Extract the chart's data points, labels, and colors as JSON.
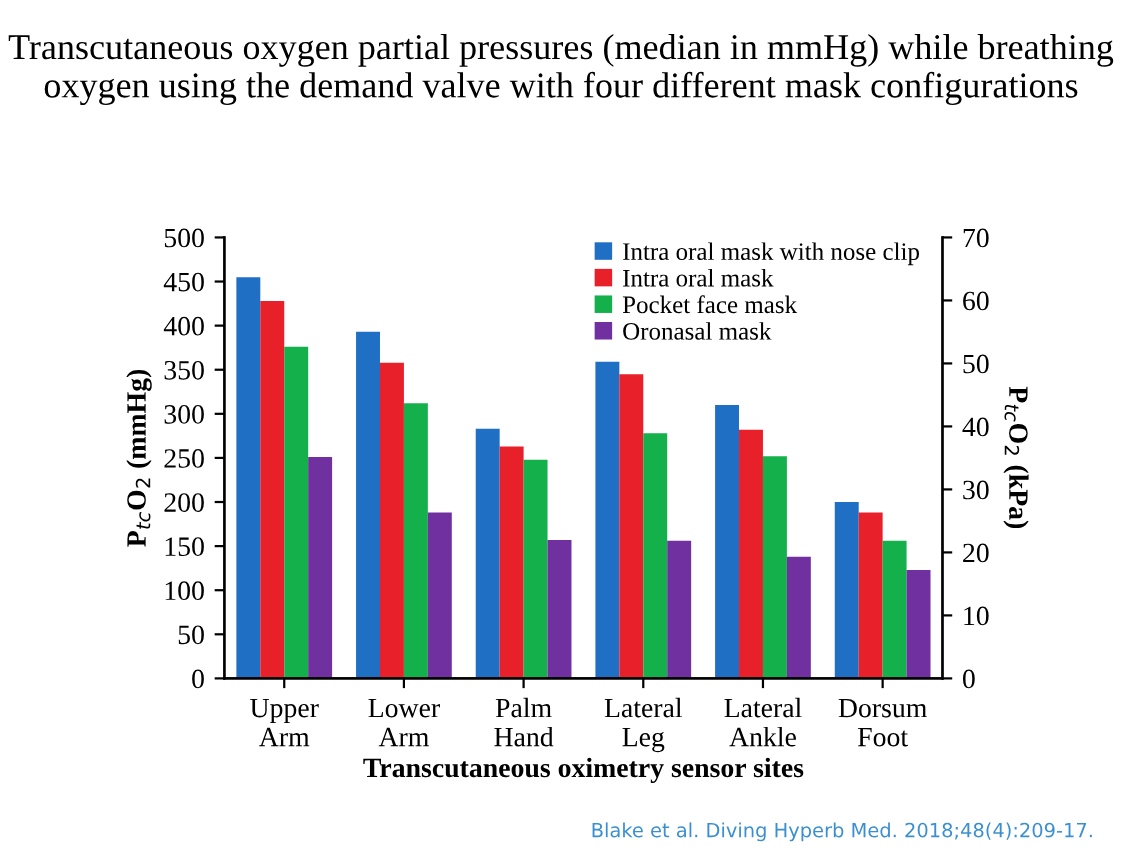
{
  "chart_data": {
    "type": "bar",
    "title": "Transcutaneous oxygen partial pressures (median in mmHg) while breathing oxygen using the demand valve with four different mask configurations",
    "categories": [
      "Upper\nArm",
      "Lower\nArm",
      "Palm\nHand",
      "Lateral\nLeg",
      "Lateral\nAnkle",
      "Dorsum\nFoot"
    ],
    "series": [
      {
        "name": "Intra oral mask with nose clip",
        "color": "#1f6fc5",
        "values": [
          455,
          393,
          283,
          359,
          310,
          200
        ]
      },
      {
        "name": "Intra oral mask",
        "color": "#e8202a",
        "values": [
          428,
          358,
          263,
          345,
          282,
          188
        ]
      },
      {
        "name": "Pocket face mask",
        "color": "#14b04c",
        "values": [
          376,
          312,
          248,
          278,
          252,
          156
        ]
      },
      {
        "name": "Oronasal mask",
        "color": "#7030a0",
        "values": [
          251,
          188,
          157,
          156,
          138,
          123
        ]
      }
    ],
    "xlabel": "Transcutaneous oximetry sensor sites",
    "ylabel": "P$_{tc}$O$_{2}$ (mmHg)",
    "y2label": "P$_{tc}$O$_{2}$ (kPa)",
    "ylim": [
      0,
      500
    ],
    "yticks": [
      0,
      50,
      100,
      150,
      200,
      250,
      300,
      350,
      400,
      450,
      500
    ],
    "y2lim": [
      0,
      70
    ],
    "y2ticks": [
      0,
      10,
      20,
      30,
      40,
      50,
      60,
      70
    ],
    "legend": "top right",
    "grid": false,
    "annotations": [
      "Blake et al. Diving Hyperb Med. 2018;48(4):209-17."
    ]
  }
}
